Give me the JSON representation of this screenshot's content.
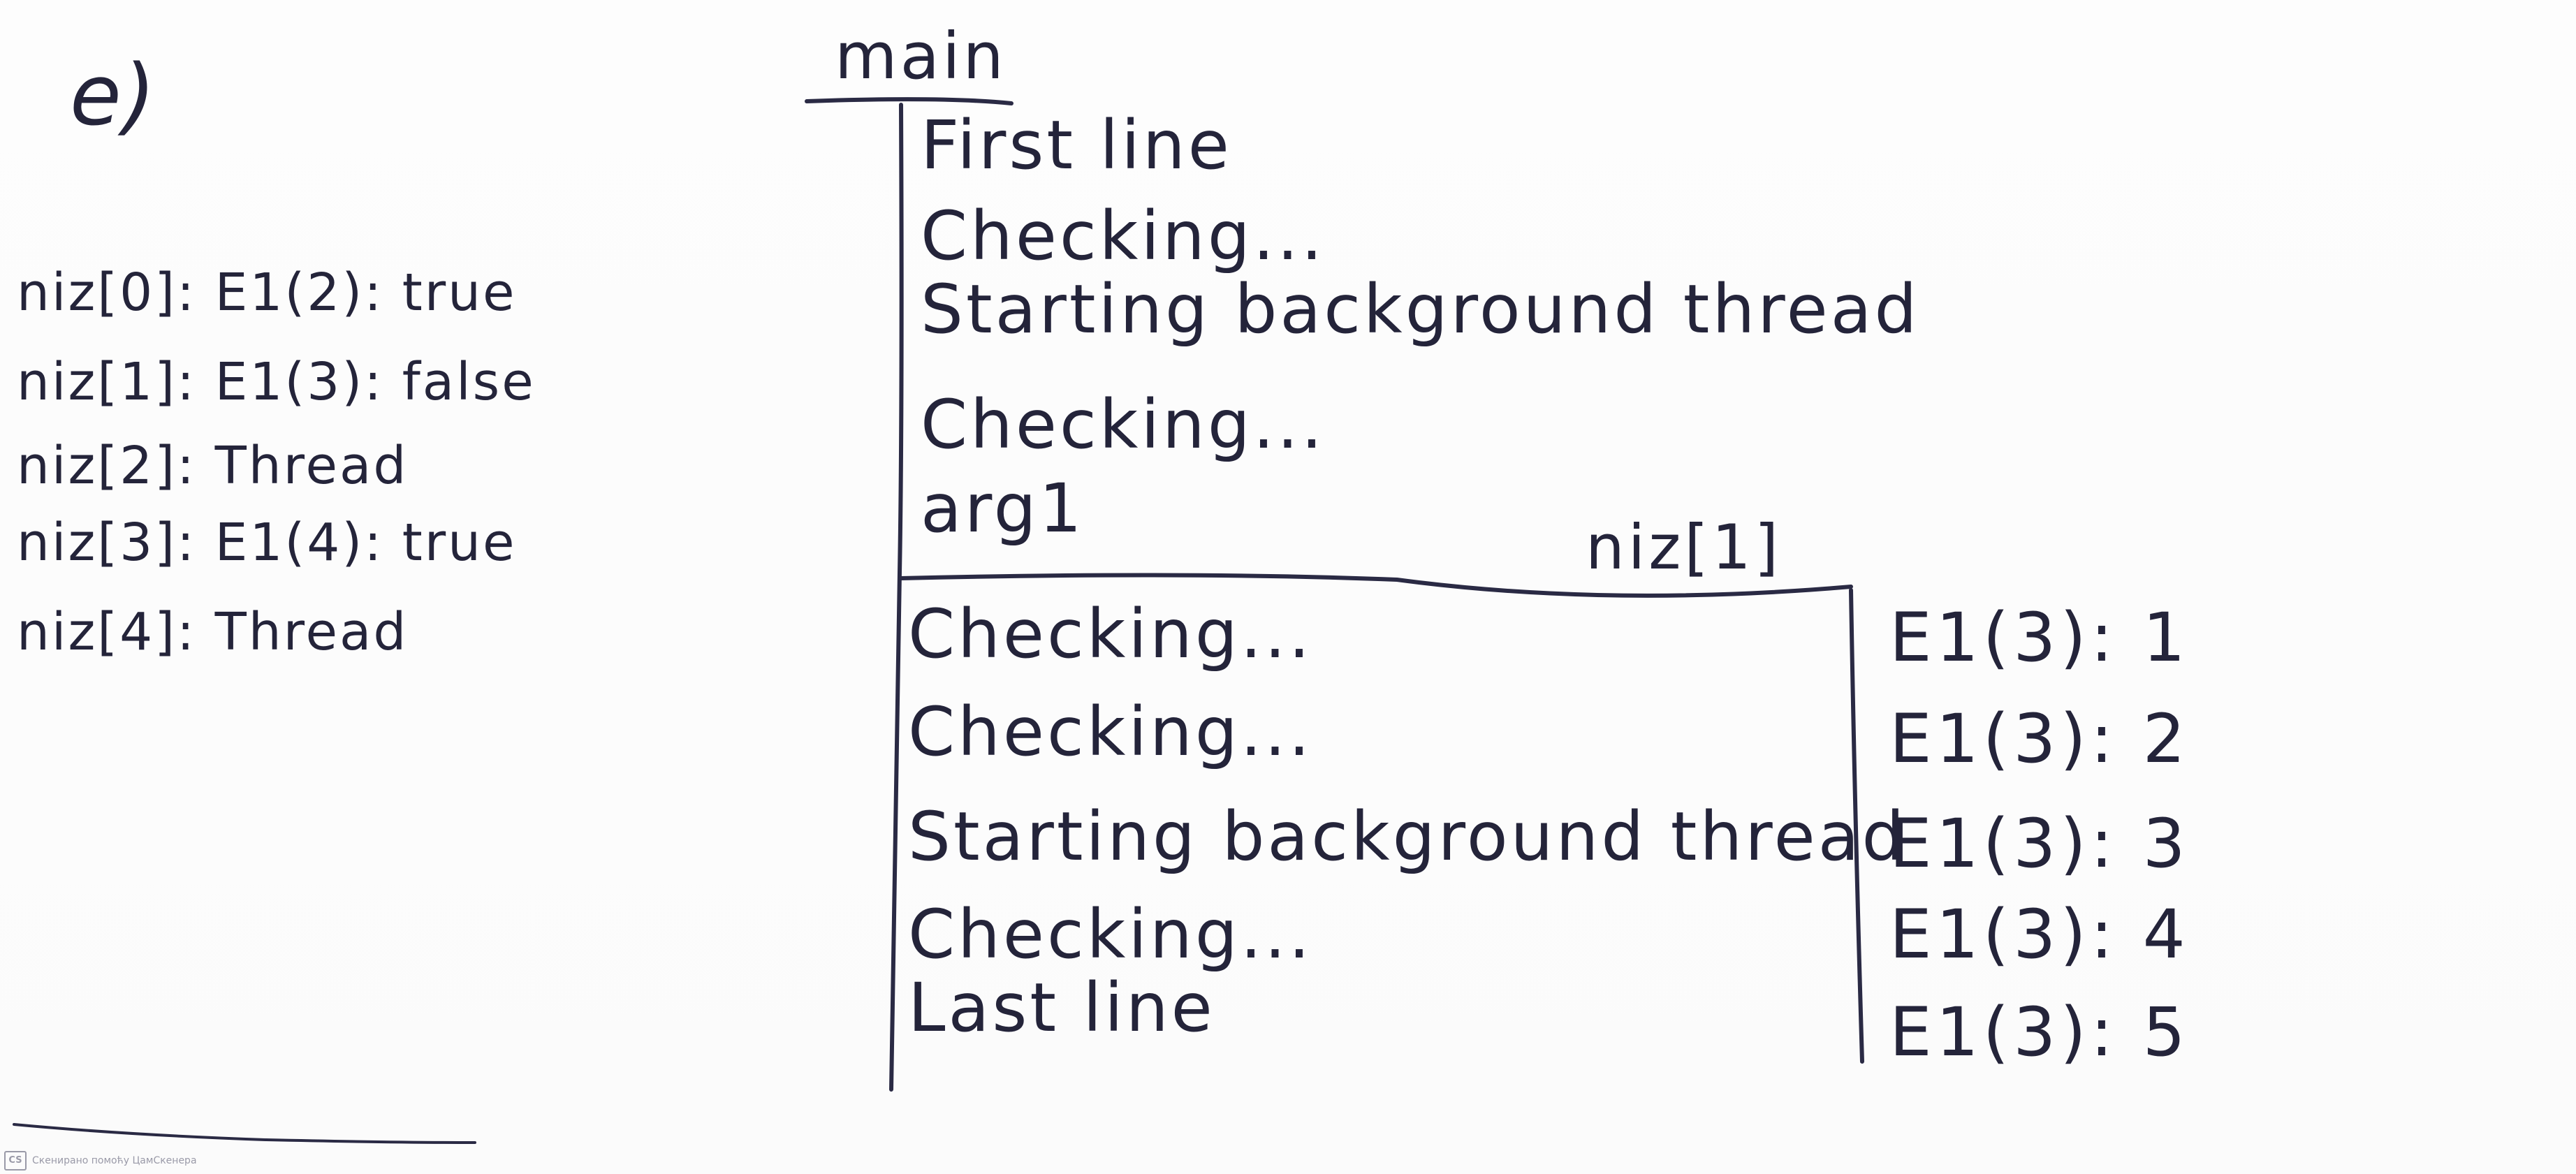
{
  "label": "e)",
  "left_list": [
    "niz[0]: E1(2): true",
    "niz[1]: E1(3): false",
    "niz[2]: Thread",
    "niz[3]: E1(4): true",
    "niz[4]: Thread"
  ],
  "main": {
    "title": "main",
    "lines": [
      "First line",
      "Checking...",
      "Starting background thread",
      "Checking...",
      "arg1"
    ],
    "after_lines": [
      "Checking...",
      "Checking...",
      "Starting background thread",
      "Checking...",
      "Last line"
    ]
  },
  "thread": {
    "title": "niz[1]",
    "lines": [
      "E1(3): 1",
      "E1(3): 2",
      "E1(3): 3",
      "E1(3): 4",
      "E1(3): 5"
    ]
  },
  "footer": {
    "logo": "CS",
    "text": "Скенирано помоћу ЦамСкенера"
  },
  "colors": {
    "ink": "#24243a",
    "paper": "#ffffff"
  }
}
